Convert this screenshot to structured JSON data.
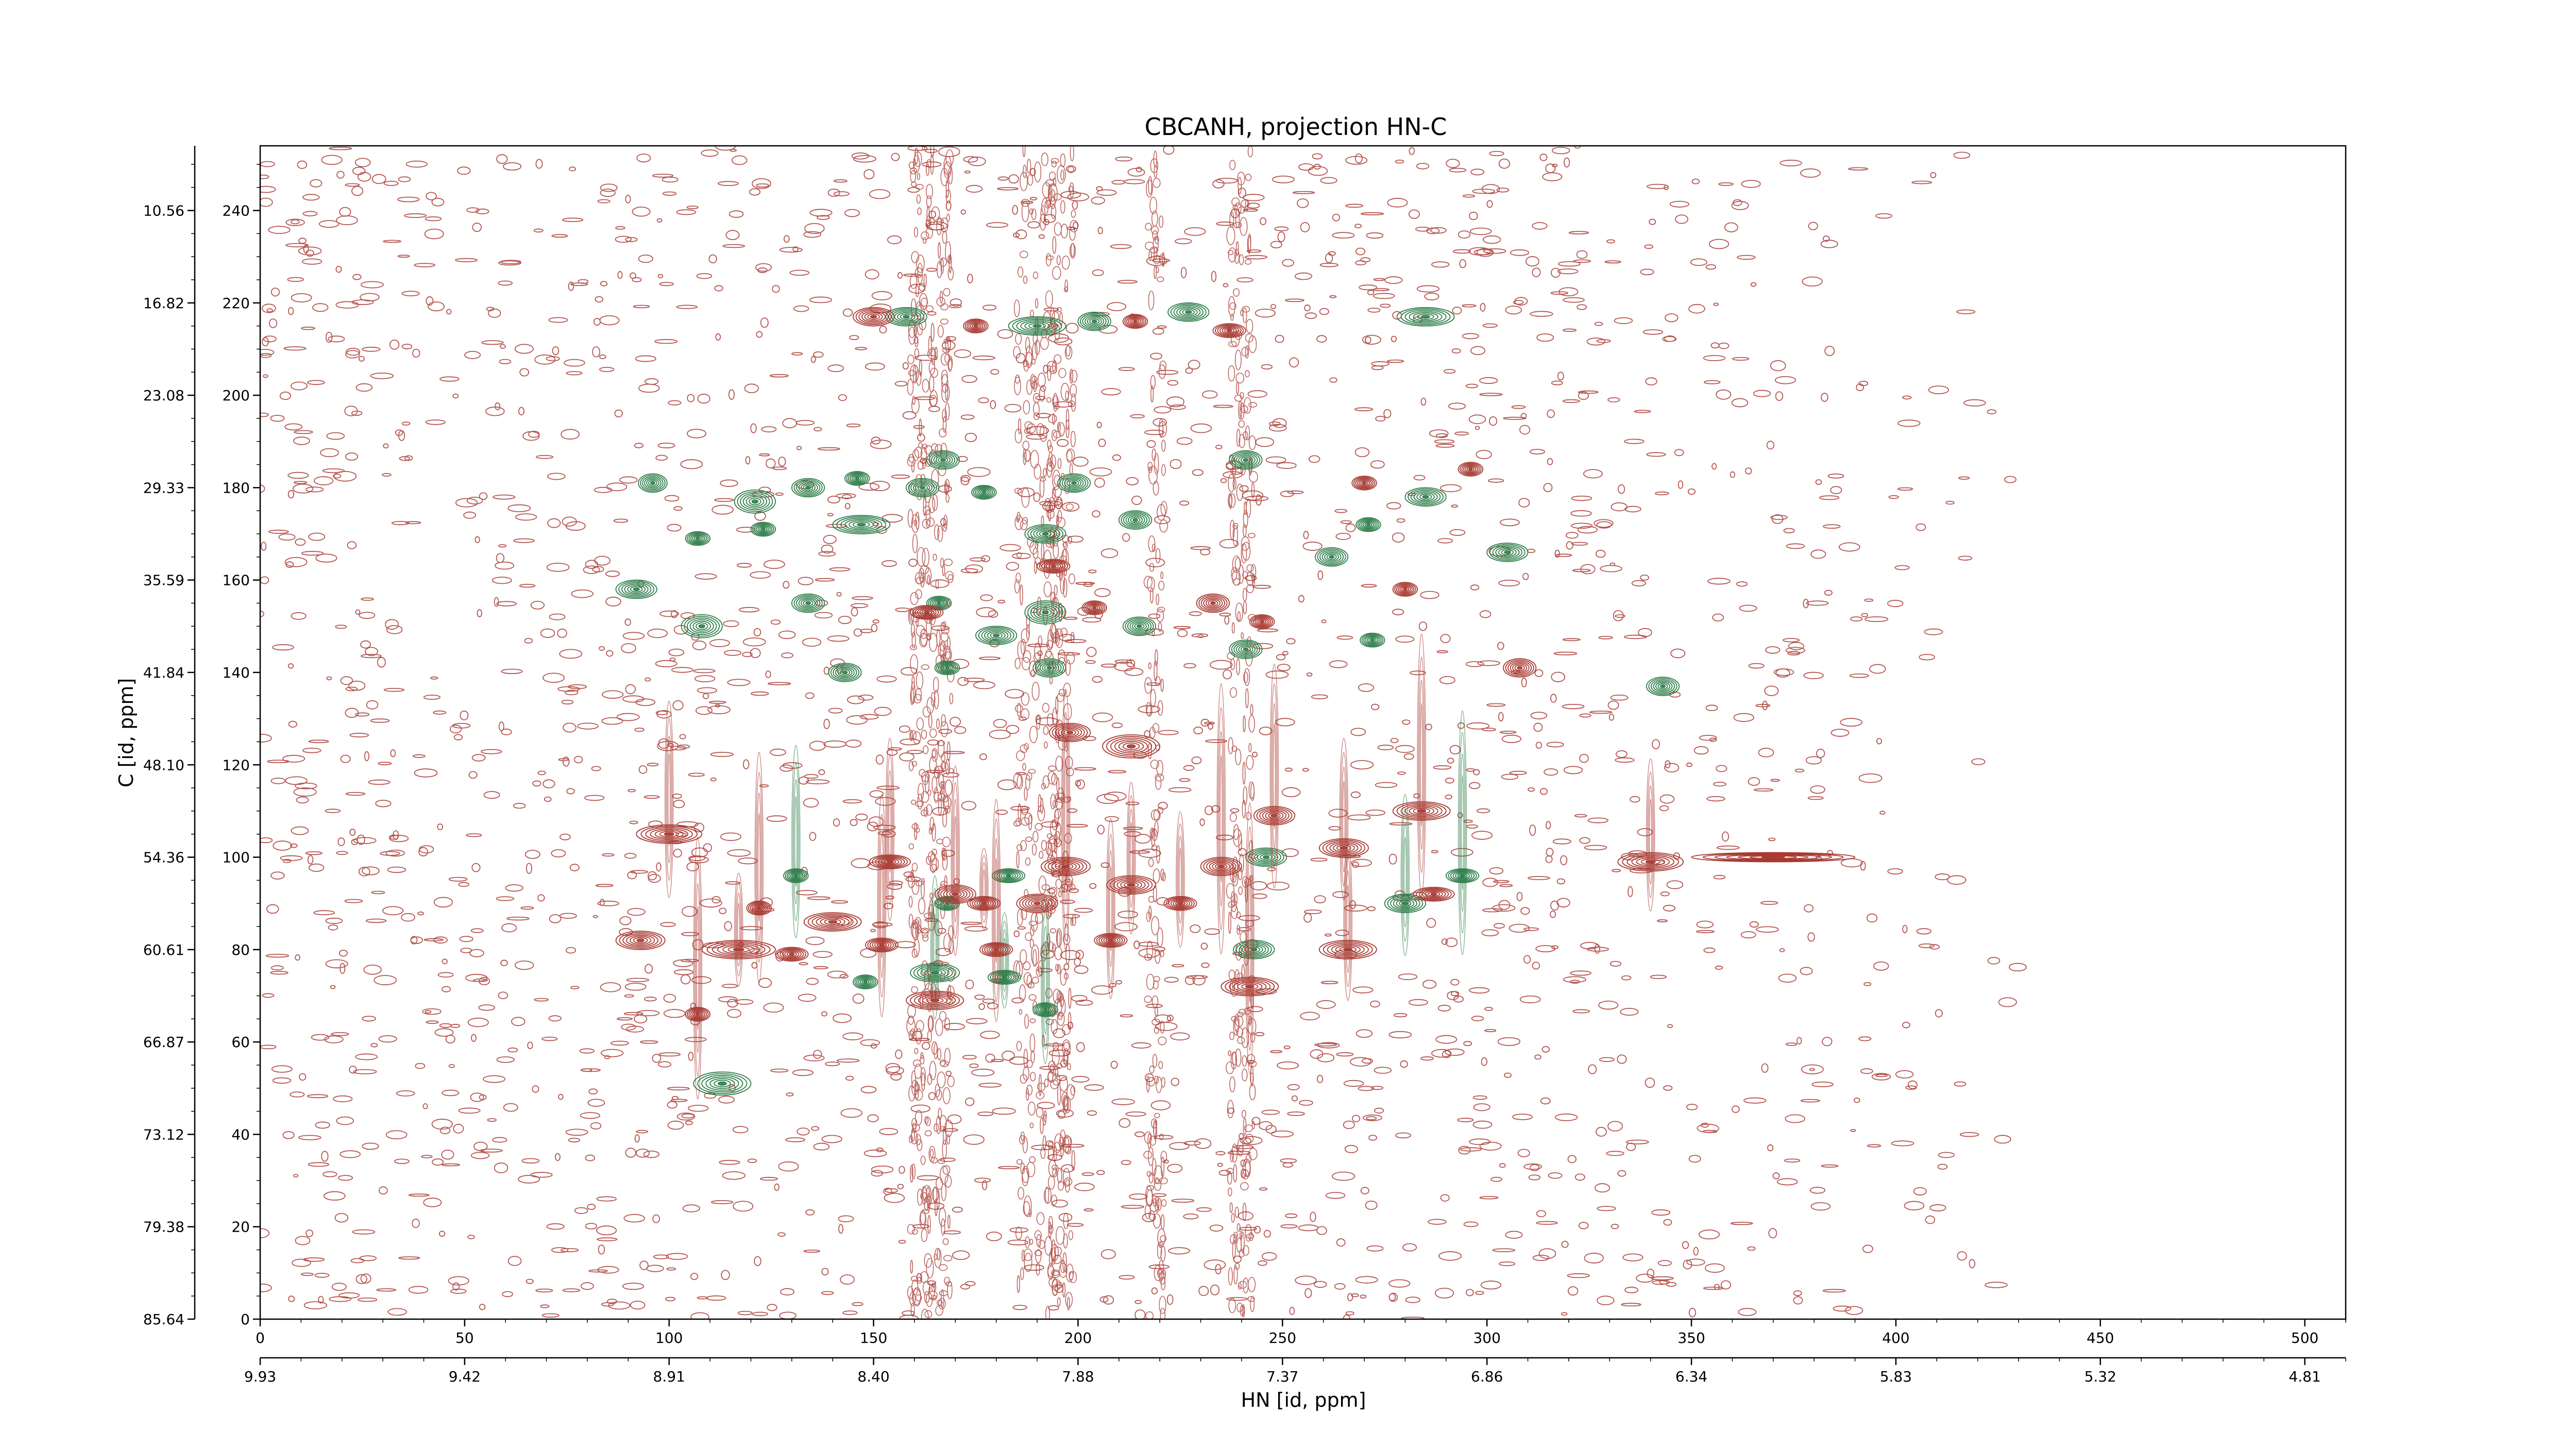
{
  "chart_data": {
    "type": "contour",
    "title": "CBCANH, projection HN-C",
    "xlabel": "HN [id, ppm]",
    "ylabel": "C [id, ppm]",
    "grid": false,
    "xlim": [
      0,
      510
    ],
    "ylim": [
      0,
      254
    ],
    "x_ticks_index": [
      0,
      50,
      100,
      150,
      200,
      250,
      300,
      350,
      400,
      450,
      500
    ],
    "x_ticks_ppm": [
      "9.93",
      "9.42",
      "8.91",
      "8.40",
      "7.88",
      "7.37",
      "6.86",
      "6.34",
      "5.83",
      "5.32",
      "4.81"
    ],
    "y_ticks_index": [
      0,
      20,
      40,
      60,
      80,
      100,
      120,
      140,
      160,
      180,
      200,
      220,
      240
    ],
    "y_ticks_ppm": [
      "85.64",
      "79.38",
      "73.12",
      "66.87",
      "60.61",
      "54.36",
      "48.10",
      "41.84",
      "35.59",
      "29.33",
      "23.08",
      "16.82",
      "10.56"
    ],
    "series": [
      {
        "color": "#2e7d4a",
        "values": [
          [
            92,
            158,
            10,
            4
          ],
          [
            96,
            181,
            7,
            4
          ],
          [
            107,
            169,
            6,
            3
          ],
          [
            108,
            150,
            10,
            5
          ],
          [
            113,
            51,
            14,
            5
          ],
          [
            121,
            177,
            10,
            5
          ],
          [
            123,
            171,
            6,
            3
          ],
          [
            134,
            180,
            8,
            4
          ],
          [
            134,
            155,
            8,
            4
          ],
          [
            143,
            140,
            8,
            4
          ],
          [
            146,
            182,
            6,
            3
          ],
          [
            147,
            172,
            14,
            4
          ],
          [
            158,
            217,
            10,
            4
          ],
          [
            162,
            180,
            8,
            4
          ],
          [
            166,
            155,
            6,
            3
          ],
          [
            167,
            186,
            8,
            4
          ],
          [
            168,
            141,
            6,
            3
          ],
          [
            177,
            179,
            6,
            3
          ],
          [
            180,
            148,
            10,
            4
          ],
          [
            190,
            215,
            14,
            4
          ],
          [
            192,
            170,
            10,
            4
          ],
          [
            192,
            153,
            10,
            5
          ],
          [
            193,
            141,
            8,
            4
          ],
          [
            199,
            181,
            8,
            4
          ],
          [
            204,
            216,
            8,
            4
          ],
          [
            214,
            173,
            8,
            4
          ],
          [
            215,
            150,
            8,
            4
          ],
          [
            227,
            218,
            10,
            4
          ],
          [
            241,
            186,
            8,
            4
          ],
          [
            241,
            145,
            8,
            4
          ],
          [
            243,
            80,
            10,
            4
          ],
          [
            246,
            100,
            10,
            4
          ],
          [
            262,
            165,
            8,
            4
          ],
          [
            271,
            172,
            6,
            3
          ],
          [
            272,
            147,
            6,
            3
          ],
          [
            280,
            90,
            10,
            4
          ],
          [
            285,
            217,
            14,
            4
          ],
          [
            285,
            178,
            10,
            4
          ],
          [
            294,
            96,
            8,
            3
          ],
          [
            305,
            166,
            10,
            4
          ],
          [
            343,
            137,
            8,
            4
          ],
          [
            165,
            75,
            12,
            4
          ],
          [
            148,
            73,
            6,
            3
          ],
          [
            182,
            74,
            8,
            3
          ],
          [
            192,
            67,
            6,
            3
          ],
          [
            183,
            96,
            8,
            3
          ],
          [
            131,
            96,
            6,
            3
          ],
          [
            168,
            90,
            6,
            3
          ]
        ]
      },
      {
        "color": "#a83a32",
        "values": [
          [
            150,
            217,
            10,
            4
          ],
          [
            175,
            215,
            6,
            3
          ],
          [
            214,
            216,
            6,
            3
          ],
          [
            237,
            214,
            8,
            3
          ],
          [
            194,
            163,
            8,
            3
          ],
          [
            204,
            154,
            6,
            3
          ],
          [
            213,
            124,
            14,
            5
          ],
          [
            198,
            127,
            10,
            4
          ],
          [
            233,
            155,
            8,
            4
          ],
          [
            245,
            151,
            6,
            3
          ],
          [
            270,
            181,
            6,
            3
          ],
          [
            280,
            158,
            6,
            3
          ],
          [
            308,
            141,
            8,
            4
          ],
          [
            296,
            184,
            6,
            3
          ],
          [
            163,
            153,
            8,
            3
          ],
          [
            100,
            105,
            16,
            4
          ],
          [
            93,
            82,
            12,
            4
          ],
          [
            117,
            80,
            18,
            4
          ],
          [
            107,
            66,
            6,
            3
          ],
          [
            140,
            86,
            14,
            4
          ],
          [
            154,
            99,
            10,
            3
          ],
          [
            170,
            92,
            10,
            4
          ],
          [
            190,
            90,
            10,
            4
          ],
          [
            197,
            98,
            12,
            4
          ],
          [
            208,
            82,
            8,
            3
          ],
          [
            213,
            94,
            12,
            4
          ],
          [
            225,
            90,
            8,
            3
          ],
          [
            235,
            98,
            10,
            4
          ],
          [
            242,
            72,
            14,
            4
          ],
          [
            248,
            109,
            10,
            4
          ],
          [
            265,
            102,
            12,
            4
          ],
          [
            266,
            80,
            14,
            4
          ],
          [
            284,
            110,
            14,
            4
          ],
          [
            287,
            92,
            10,
            3
          ],
          [
            340,
            99,
            16,
            4
          ],
          [
            370,
            100,
            40,
            2
          ],
          [
            165,
            69,
            14,
            4
          ],
          [
            130,
            79,
            8,
            3
          ],
          [
            152,
            81,
            8,
            3
          ],
          [
            180,
            80,
            8,
            3
          ],
          [
            177,
            90,
            8,
            3
          ],
          [
            122,
            89,
            6,
            3
          ]
        ]
      }
    ]
  }
}
